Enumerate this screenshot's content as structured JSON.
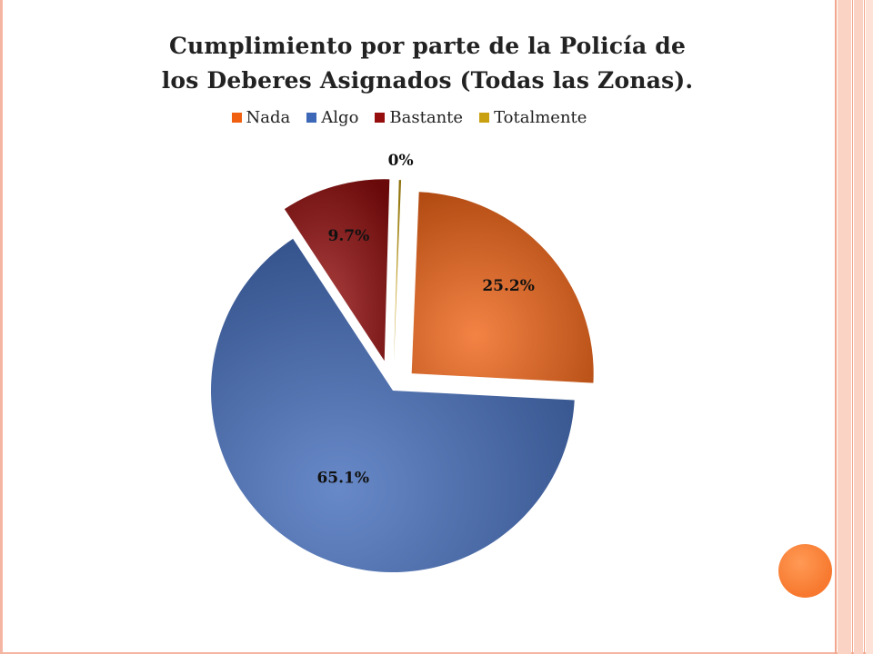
{
  "chart_data": {
    "type": "pie",
    "title_lines": [
      "Cumplimiento por parte de la Policía de",
      "los Deberes Asignados (Todas las Zonas)."
    ],
    "legend_position": "top",
    "categories": [
      "Nada",
      "Algo",
      "Bastante",
      "Totalmente"
    ],
    "values": [
      25.2,
      65.1,
      9.7,
      0
    ],
    "data_labels": [
      "25.2%",
      "65.1%",
      "9.7%",
      "0%"
    ],
    "colors": [
      "#f06010",
      "#3d68b8",
      "#960d0d",
      "#c8a010"
    ],
    "exploded": true
  }
}
